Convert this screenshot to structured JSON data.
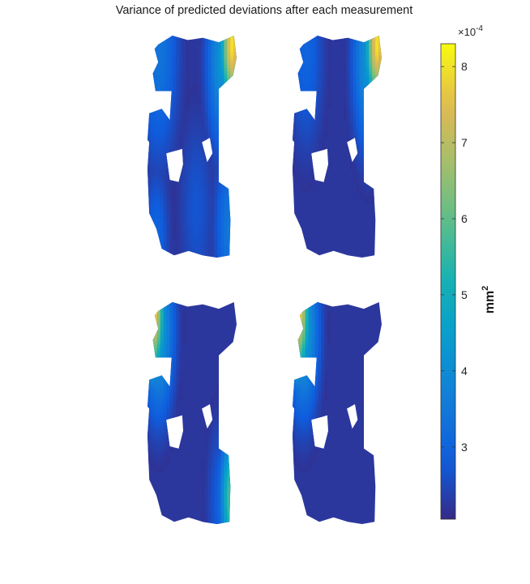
{
  "chart_data": {
    "type": "heatmap",
    "title": "Variance of predicted deviations after each measurement",
    "panels": [
      {
        "id": 1,
        "hotspots": [
          {
            "u": 0.95,
            "v": 0.04,
            "value": 8.0,
            "spread": 0.09
          },
          {
            "u": 0.84,
            "v": 0.12,
            "value": 4.2,
            "spread": 0.12
          },
          {
            "u": 0.12,
            "v": 0.06,
            "value": 3.4,
            "spread": 0.16
          },
          {
            "u": 0.93,
            "v": 0.86,
            "value": 3.5,
            "spread": 0.12
          },
          {
            "u": 0.1,
            "v": 0.9,
            "value": 3.0,
            "spread": 0.1
          },
          {
            "u": 0.55,
            "v": 0.78,
            "value": 2.7,
            "spread": 0.14
          }
        ]
      },
      {
        "id": 2,
        "hotspots": [
          {
            "u": 0.95,
            "v": 0.04,
            "value": 8.0,
            "spread": 0.09
          },
          {
            "u": 0.85,
            "v": 0.12,
            "value": 4.2,
            "spread": 0.12
          },
          {
            "u": 0.15,
            "v": 0.08,
            "value": 3.0,
            "spread": 0.14
          }
        ]
      },
      {
        "id": 3,
        "hotspots": [
          {
            "u": 0.06,
            "v": 0.04,
            "value": 8.0,
            "spread": 0.09
          },
          {
            "u": 0.12,
            "v": 0.12,
            "value": 4.5,
            "spread": 0.12
          },
          {
            "u": 0.95,
            "v": 0.88,
            "value": 6.0,
            "spread": 0.09
          },
          {
            "u": 0.85,
            "v": 0.9,
            "value": 3.0,
            "spread": 0.12
          }
        ]
      },
      {
        "id": 4,
        "hotspots": [
          {
            "u": 0.06,
            "v": 0.04,
            "value": 8.0,
            "spread": 0.09
          },
          {
            "u": 0.12,
            "v": 0.12,
            "value": 4.5,
            "spread": 0.12
          }
        ]
      }
    ],
    "colorbar": {
      "label_base": "mm",
      "label_exponent": "2",
      "min": 2.05,
      "max": 8.3,
      "ticks": [
        3,
        4,
        5,
        6,
        7,
        8
      ],
      "multiplier_base": "×10",
      "multiplier_exponent": "-4",
      "colormap": "parula"
    }
  }
}
